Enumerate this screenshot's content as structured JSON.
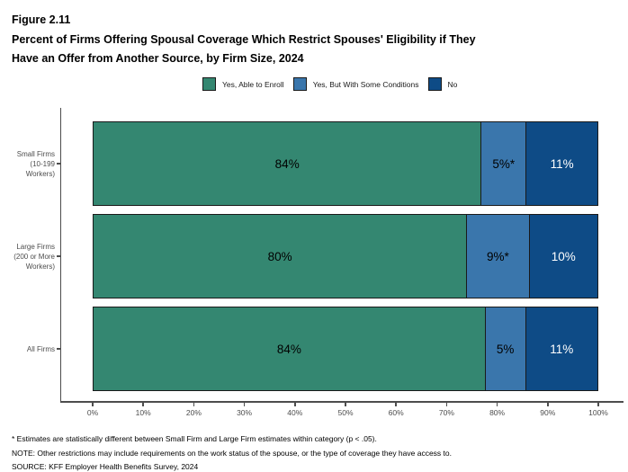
{
  "header": {
    "figure_label": "Figure 2.11",
    "title_line1": "Percent of Firms Offering Spousal Coverage Which Restrict Spouses' Eligibility if They",
    "title_line2": "Have an Offer from Another Source, by Firm Size, 2024"
  },
  "colors": {
    "teal": "#348771",
    "blue": "#3A76AC",
    "dark_blue": "#0E4B86",
    "bar_border": "#1A1A1A",
    "axis": "#4D4D4D"
  },
  "chart_data": {
    "type": "bar",
    "orientation": "horizontal",
    "stacked": true,
    "unit": "percent",
    "xlim": [
      0,
      100
    ],
    "x_ticks": [
      "0%",
      "10%",
      "20%",
      "30%",
      "40%",
      "50%",
      "60%",
      "70%",
      "80%",
      "90%",
      "100%"
    ],
    "grid": false,
    "legend_position": "top",
    "categories": [
      "Small Firms (10-199 Workers)",
      "Large Firms (200 or More Workers)",
      "All Firms"
    ],
    "category_label_lines": [
      [
        "Small Firms",
        "(10-199",
        "Workers)"
      ],
      [
        "Large Firms",
        "(200 or More",
        "Workers)"
      ],
      [
        "All Firms"
      ]
    ],
    "series": [
      {
        "name": "Yes, Able to Enroll",
        "color": "#348771",
        "label_color": "#000000",
        "values": [
          84,
          80,
          84
        ],
        "labels": [
          "84%",
          "80%",
          "84%"
        ]
      },
      {
        "name": "Yes, But With Some Conditions",
        "color": "#3A76AC",
        "label_color": "#000000",
        "values": [
          5,
          9,
          5
        ],
        "labels": [
          "5%*",
          "9%*",
          "5%"
        ]
      },
      {
        "name": "No",
        "color": "#0E4B86",
        "label_color": "#FFFFFF",
        "values": [
          11,
          10,
          11
        ],
        "labels": [
          "11%",
          "10%",
          "11%"
        ]
      }
    ]
  },
  "footnotes": [
    "* Estimates are statistically different between Small Firm and Large Firm estimates within category (p < .05).",
    "NOTE: Other restrictions may include requirements on the work status of the spouse, or the type of coverage they have access to.",
    "SOURCE: KFF Employer Health Benefits Survey, 2024"
  ]
}
